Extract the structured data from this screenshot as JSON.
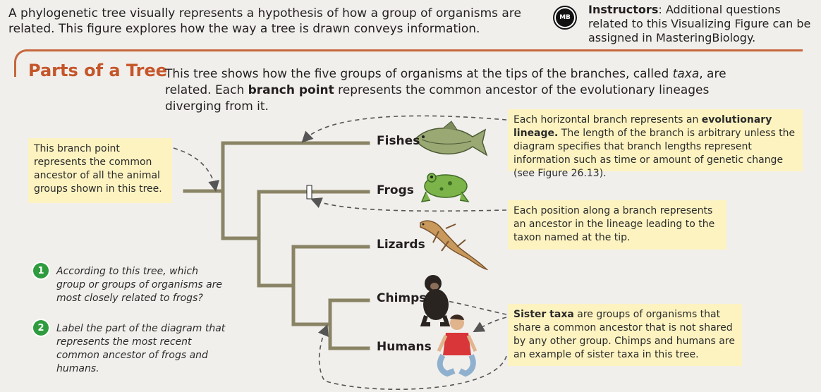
{
  "intro": "A phylogenetic tree visually represents a hypothesis of how a group of organisms are related. This figure explores how the way a tree is drawn conveys information.",
  "badge": "MB",
  "instructor": {
    "label": "Instructors",
    "text": ": Additional questions related to this Visualizing Figure can be assigned in MasteringBiology."
  },
  "section_title": "Parts of a Tree",
  "description": {
    "part1": "This tree shows how the five groups of organisms at the tips of the branches, called ",
    "taxa": "taxa",
    "part2": ", are related. Each ",
    "branch_point": "branch point",
    "part3": " represents the common ancestor of the evolutionary lineages diverging from it."
  },
  "notes": {
    "root": "This branch point represents the common ancestor of all the animal groups shown in this tree.",
    "lineage_bold": "evolutionary lineage.",
    "lineage_pre": "Each horizontal branch represents an ",
    "lineage_post": " The length of the branch is arbitrary unless the diagram specifies that branch lengths represent information such as time or amount of genetic change (see Figure 26.13).",
    "position": "Each position along a branch represents an ancestor in the lineage leading to the taxon named at the tip.",
    "sister_bold": "Sister taxa",
    "sister_post": " are groups of organisms that share a common ancestor that is not shared by any other group. Chimps and humans are an example of sister taxa in this tree."
  },
  "taxa": [
    "Fishes",
    "Frogs",
    "Lizards",
    "Chimps",
    "Humans"
  ],
  "questions": [
    {
      "num": "1",
      "text": "According to this tree, which group or groups of organisms are most closely related to frogs?"
    },
    {
      "num": "2",
      "text": "Label the part of the diagram that represents the most recent common ancestor of frogs and humans."
    }
  ],
  "colors": {
    "branch": "#8a8466",
    "accent": "#c5683c",
    "note_bg": "#fdf3c1",
    "question": "#2e9c3e"
  }
}
